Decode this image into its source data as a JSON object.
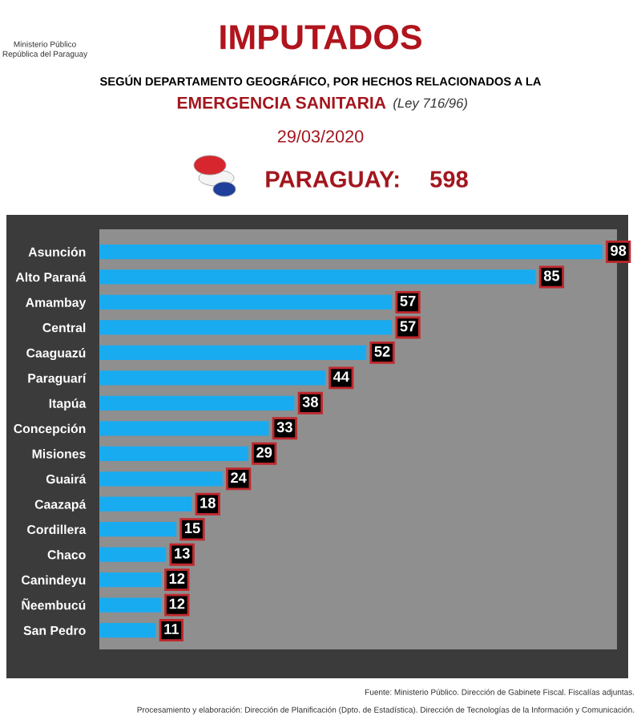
{
  "chart_data": {
    "type": "bar",
    "orientation": "horizontal",
    "title": "IMPUTADOS",
    "subtitle": "SEGÚN DEPARTAMENTO GEOGRÁFICO, POR HECHOS RELACIONADOS A LA",
    "categories": [
      "Asunción",
      "Alto Paraná",
      "Amambay",
      "Central",
      "Caaguazú",
      "Paraguarí",
      "Itapúa",
      "Concepción",
      "Misiones",
      "Guairá",
      "Caazapá",
      "Cordillera",
      "Chaco",
      "Canindeyu",
      "Ñeembucú",
      "San Pedro"
    ],
    "values": [
      98,
      85,
      57,
      57,
      52,
      44,
      38,
      33,
      29,
      24,
      18,
      15,
      13,
      12,
      12,
      11
    ],
    "color": "#19abf0",
    "data_labels": true,
    "annotations": [
      "EMERGENCIA SANITARIA",
      "(Ley 716/96)",
      "29/03/2020",
      "PARAGUAY:",
      "598",
      "Ministerio Público",
      "República del Paraguay",
      "Fuente: Ministerio Público. Dirección de Gabinete Fiscal. Fiscalías adjuntas.",
      "Procesamiento y elaboración: Dirección de Planificación (Dpto. de Estadística). Dirección de Tecnologías de la Información y Comunicación."
    ]
  }
}
